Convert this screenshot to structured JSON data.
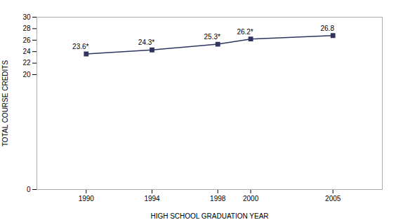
{
  "chart_data": {
    "type": "line",
    "x": [
      1990,
      1994,
      1998,
      2000,
      2005
    ],
    "values": [
      23.6,
      24.3,
      25.3,
      26.2,
      26.8
    ],
    "value_labels": [
      "23.6*",
      "24.3*",
      "25.3*",
      "26.2*",
      "26.8"
    ],
    "data_labels": true,
    "xlabel": "HIGH SCHOOL GRADUATION YEAR",
    "ylabel": "TOTAL COURSE CREDITS",
    "xlim": [
      1987,
      2008
    ],
    "xticks": [
      1990,
      1994,
      1998,
      2000,
      2005
    ],
    "ylim": [
      0,
      30
    ],
    "yticks": [
      0,
      20,
      22,
      24,
      26,
      28,
      30
    ],
    "color": "#2e3460",
    "marker": "square",
    "grid": false
  }
}
